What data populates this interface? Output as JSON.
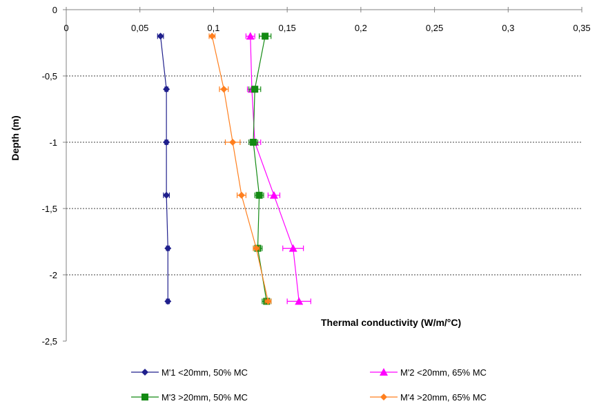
{
  "chart_data": {
    "type": "line",
    "title": "",
    "xlabel": "Thermal conductivity (W/m/°C)",
    "ylabel": "Depth (m)",
    "xlim": [
      0,
      0.35
    ],
    "ylim": [
      -2.5,
      0
    ],
    "x_axis_position": "top",
    "x_ticks": [
      0,
      0.05,
      0.1,
      0.15,
      0.2,
      0.25,
      0.3,
      0.35
    ],
    "x_tick_labels": [
      "0",
      "0,05",
      "0,1",
      "0,15",
      "0,2",
      "0,25",
      "0,3",
      "0,35"
    ],
    "y_ticks": [
      0,
      -0.5,
      -1,
      -1.5,
      -2,
      -2.5
    ],
    "y_tick_labels": [
      "0",
      "-0,5",
      "-1",
      "-1,5",
      "-2",
      "-2,5"
    ],
    "grid": "horizontal dashed at y ticks",
    "legend_placement": "bottom",
    "series": [
      {
        "name": "M'1 <20mm, 50% MC",
        "color": "#1f1f8c",
        "marker": "diamond",
        "points": [
          {
            "x": 0.064,
            "y": -0.2,
            "err": 0.002
          },
          {
            "x": 0.068,
            "y": -0.6,
            "err": 0.001
          },
          {
            "x": 0.068,
            "y": -1.0,
            "err": 0.001
          },
          {
            "x": 0.068,
            "y": -1.4,
            "err": 0.002
          },
          {
            "x": 0.069,
            "y": -1.8,
            "err": 0.001
          },
          {
            "x": 0.069,
            "y": -2.2,
            "err": 0.001
          }
        ]
      },
      {
        "name": "M'2 <20mm, 65% MC",
        "color": "#ff00ff",
        "marker": "triangle",
        "points": [
          {
            "x": 0.125,
            "y": -0.2,
            "err": 0.003
          },
          {
            "x": 0.126,
            "y": -0.6,
            "err": 0.003
          },
          {
            "x": 0.128,
            "y": -1.0,
            "err": 0.004
          },
          {
            "x": 0.141,
            "y": -1.4,
            "err": 0.004
          },
          {
            "x": 0.154,
            "y": -1.8,
            "err": 0.007
          },
          {
            "x": 0.158,
            "y": -2.2,
            "err": 0.008
          }
        ]
      },
      {
        "name": "M'3 >20mm, 50% MC",
        "color": "#138a13",
        "marker": "square",
        "points": [
          {
            "x": 0.135,
            "y": -0.2,
            "err": 0.004
          },
          {
            "x": 0.128,
            "y": -0.6,
            "err": 0.004
          },
          {
            "x": 0.127,
            "y": -1.0,
            "err": 0.003
          },
          {
            "x": 0.131,
            "y": -1.4,
            "err": 0.003
          },
          {
            "x": 0.13,
            "y": -1.8,
            "err": 0.003
          },
          {
            "x": 0.136,
            "y": -2.2,
            "err": 0.003
          }
        ]
      },
      {
        "name": "M'4 >20mm, 65% MC",
        "color": "#ff7f1e",
        "marker": "diamond",
        "points": [
          {
            "x": 0.099,
            "y": -0.2,
            "err": 0.002
          },
          {
            "x": 0.107,
            "y": -0.6,
            "err": 0.003
          },
          {
            "x": 0.113,
            "y": -1.0,
            "err": 0.005
          },
          {
            "x": 0.119,
            "y": -1.4,
            "err": 0.003
          },
          {
            "x": 0.129,
            "y": -1.8,
            "err": 0.002
          },
          {
            "x": 0.137,
            "y": -2.2,
            "err": 0.002
          }
        ]
      }
    ]
  }
}
